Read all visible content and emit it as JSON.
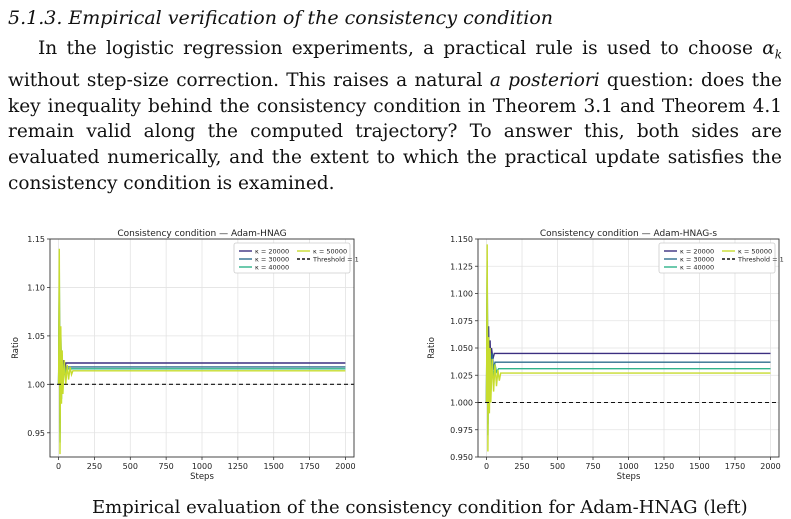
{
  "section": {
    "heading": "5.1.3. Empirical verification of the consistency condition"
  },
  "paragraph": {
    "s1": "In the logistic regression experiments, a practical rule is used to choose ",
    "alpha": "α",
    "alpha_sub": "k",
    "s2": " without step-size correction. This raises a natural ",
    "posteriori": "a posteriori",
    "s3": " question: does the key inequality behind the consistency condition in Theorem 3.1 and Theorem 4.1 remain valid along the computed trajectory? To answer this, both sides are evaluated numerically, and the extent to which the practical update satisfies the consistency condition is examined."
  },
  "caption": {
    "text": "Empirical evaluation of the consistency condition for Adam-HNAG (left)"
  },
  "colors": {
    "k20000": "#3b2f80",
    "k30000": "#2f6f8f",
    "k40000": "#2fb38a",
    "k50000": "#c7dc2e",
    "threshold": "#111111"
  },
  "chart_data": [
    {
      "type": "line",
      "title": "Consistency condition — Adam-HNAG",
      "xlabel": "Steps",
      "ylabel": "Ratio",
      "xlim": [
        -60,
        2060
      ],
      "ylim": [
        0.925,
        1.15
      ],
      "xticks": [
        "0",
        "250",
        "500",
        "750",
        "1000",
        "1250",
        "1500",
        "1750",
        "2000"
      ],
      "xtick_values": [
        0,
        250,
        500,
        750,
        1000,
        1250,
        1500,
        1750,
        2000
      ],
      "yticks": [
        "0.95",
        "1.00",
        "1.05",
        "1.10",
        "1.15"
      ],
      "ytick_values": [
        0.95,
        1.0,
        1.05,
        1.1,
        1.15
      ],
      "grid": true,
      "legend_position": "top-right",
      "threshold": {
        "name": "Threshold = 1",
        "value": 1.0
      },
      "series": [
        {
          "name": "κ = 20000",
          "steady": 1.022,
          "x": [
            0,
            5,
            10,
            15,
            20,
            25,
            30,
            35,
            40,
            50,
            60
          ],
          "y": [
            1.0,
            1.08,
            0.96,
            1.04,
            0.99,
            1.03,
            1.0,
            1.025,
            1.01,
            1.022,
            1.022
          ]
        },
        {
          "name": "κ = 30000",
          "steady": 1.018,
          "x": [
            0,
            5,
            10,
            15,
            20,
            25,
            30,
            35,
            45,
            55,
            70
          ],
          "y": [
            1.0,
            1.1,
            0.95,
            1.05,
            0.99,
            1.03,
            1.0,
            1.02,
            1.012,
            1.018,
            1.018
          ]
        },
        {
          "name": "κ = 40000",
          "steady": 1.016,
          "x": [
            0,
            5,
            10,
            15,
            20,
            25,
            30,
            40,
            50,
            65,
            80
          ],
          "y": [
            1.0,
            1.12,
            0.94,
            1.05,
            0.985,
            1.03,
            1.0,
            1.02,
            1.01,
            1.016,
            1.016
          ]
        },
        {
          "name": "κ = 50000",
          "steady": 1.014,
          "x": [
            0,
            5,
            10,
            15,
            20,
            25,
            30,
            40,
            50,
            60,
            70,
            80,
            90,
            100
          ],
          "y": [
            1.0,
            1.14,
            0.928,
            1.06,
            0.98,
            1.035,
            0.99,
            1.025,
            1.0,
            1.02,
            1.005,
            1.018,
            1.01,
            1.014
          ]
        }
      ]
    },
    {
      "type": "line",
      "title": "Consistency condition — Adam-HNAG-s",
      "xlabel": "Steps",
      "ylabel": "Ratio",
      "xlim": [
        -60,
        2060
      ],
      "ylim": [
        0.95,
        1.15
      ],
      "xticks": [
        "0",
        "250",
        "500",
        "750",
        "1000",
        "1250",
        "1500",
        "1750",
        "2000"
      ],
      "xtick_values": [
        0,
        250,
        500,
        750,
        1000,
        1250,
        1500,
        1750,
        2000
      ],
      "yticks": [
        "0.950",
        "0.975",
        "1.000",
        "1.025",
        "1.050",
        "1.075",
        "1.100",
        "1.125",
        "1.150"
      ],
      "ytick_values": [
        0.95,
        0.975,
        1.0,
        1.025,
        1.05,
        1.075,
        1.1,
        1.125,
        1.15
      ],
      "grid": true,
      "legend_position": "top-right",
      "threshold": {
        "name": "Threshold = 1",
        "value": 1.0
      },
      "series": [
        {
          "name": "κ = 20000",
          "steady": 1.045,
          "x": [
            0,
            5,
            10,
            15,
            20,
            25,
            30,
            35,
            45,
            55,
            70
          ],
          "y": [
            1.0,
            1.1,
            0.99,
            1.07,
            1.02,
            1.057,
            1.03,
            1.05,
            1.04,
            1.045,
            1.045
          ]
        },
        {
          "name": "κ = 30000",
          "steady": 1.037,
          "x": [
            0,
            5,
            10,
            15,
            20,
            25,
            30,
            40,
            50,
            60,
            75
          ],
          "y": [
            1.0,
            1.12,
            0.98,
            1.06,
            1.01,
            1.05,
            1.02,
            1.045,
            1.03,
            1.037,
            1.037
          ]
        },
        {
          "name": "κ = 40000",
          "steady": 1.031,
          "x": [
            0,
            5,
            10,
            15,
            20,
            25,
            30,
            40,
            50,
            60,
            70,
            85
          ],
          "y": [
            1.0,
            1.13,
            0.97,
            1.05,
            1.0,
            1.045,
            1.01,
            1.04,
            1.02,
            1.035,
            1.028,
            1.031
          ]
        },
        {
          "name": "κ = 50000",
          "steady": 1.027,
          "x": [
            0,
            5,
            10,
            15,
            20,
            25,
            30,
            40,
            50,
            60,
            70,
            80,
            90,
            100
          ],
          "y": [
            1.0,
            1.145,
            0.955,
            1.06,
            0.99,
            1.05,
            1.0,
            1.04,
            1.01,
            1.035,
            1.015,
            1.03,
            1.02,
            1.027
          ]
        }
      ]
    }
  ]
}
